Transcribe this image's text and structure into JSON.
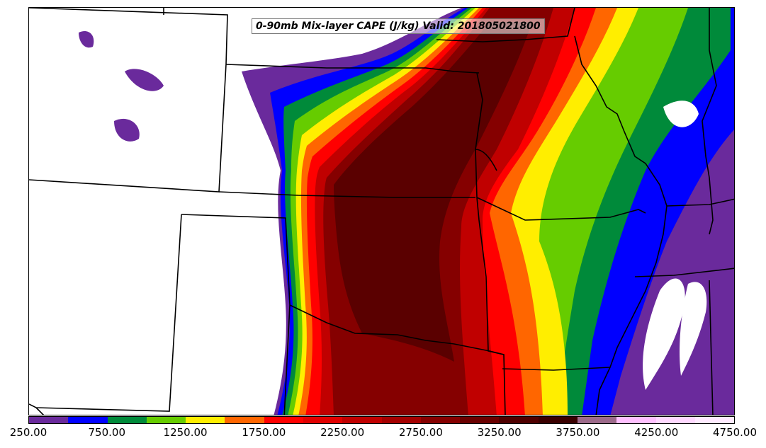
{
  "title": "0-90mb Mix-layer CAPE (J/kg) Valid: 201805021800",
  "colorbar": {
    "colors": [
      "#6a2a9c",
      "#0000ff",
      "#008a3a",
      "#66cc00",
      "#ffee00",
      "#ff6600",
      "#ff0000",
      "#e00000",
      "#c00000",
      "#a40000",
      "#850000",
      "#6a0000",
      "#4f0000",
      "#3a0000",
      "#9c6a8a",
      "#ffc0ff",
      "#ffd8ff",
      "#ffeaff"
    ],
    "tick_labels": [
      "250.00",
      "750.00",
      "1250.00",
      "1750.00",
      "2250.00",
      "2750.00",
      "3250.00",
      "3750.00",
      "4250.00",
      "4750.00"
    ]
  }
}
